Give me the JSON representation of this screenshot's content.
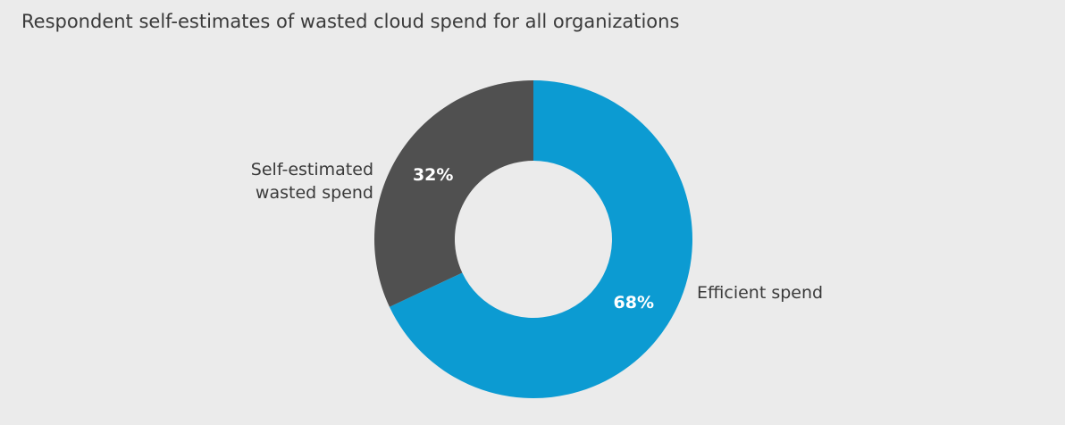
{
  "chart_data": {
    "type": "donut",
    "title": "Respondent self-estimates of wasted cloud spend for all organizations",
    "categories": [
      "Efficient spend",
      "Self-estimated wasted spend"
    ],
    "values": [
      68,
      32
    ],
    "value_labels": [
      "68%",
      "32%"
    ],
    "colors": [
      "#0c9bd2",
      "#505050"
    ]
  }
}
